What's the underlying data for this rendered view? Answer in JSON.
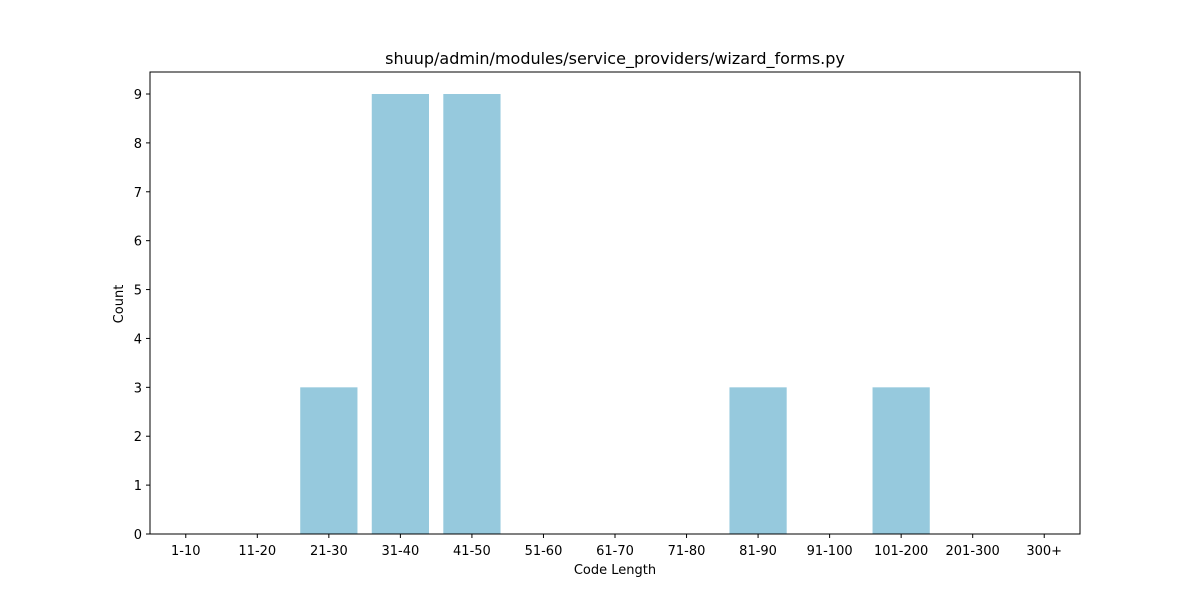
{
  "chart_data": {
    "type": "bar",
    "title": "shuup/admin/modules/service_providers/wizard_forms.py",
    "xlabel": "Code Length",
    "ylabel": "Count",
    "categories": [
      "1-10",
      "11-20",
      "21-30",
      "31-40",
      "41-50",
      "51-60",
      "61-70",
      "71-80",
      "81-90",
      "91-100",
      "101-200",
      "201-300",
      "300+"
    ],
    "values": [
      0,
      0,
      3,
      9,
      9,
      0,
      0,
      0,
      3,
      0,
      3,
      0,
      0
    ],
    "ylim": [
      0,
      9.45
    ],
    "yticks": [
      0,
      1,
      2,
      3,
      4,
      5,
      6,
      7,
      8,
      9
    ],
    "grid": false,
    "bar_color": "#96c9dd"
  }
}
